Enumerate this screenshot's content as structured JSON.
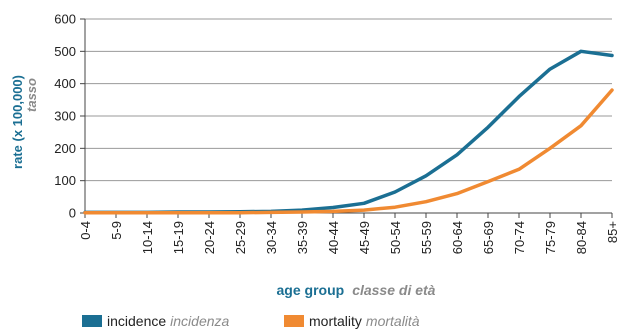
{
  "chart_data": {
    "type": "line",
    "categories": [
      "0-4",
      "5-9",
      "10-14",
      "15-19",
      "20-24",
      "25-29",
      "30-34",
      "35-39",
      "40-44",
      "45-49",
      "50-54",
      "55-59",
      "60-64",
      "65-69",
      "70-74",
      "75-79",
      "80-84",
      "85+"
    ],
    "series": [
      {
        "name": "incidence",
        "name_secondary": "incidenza",
        "color": "#1b6f93",
        "values": [
          2,
          2,
          2,
          3,
          3,
          4,
          5,
          9,
          17,
          30,
          65,
          115,
          180,
          265,
          360,
          445,
          500,
          487
        ]
      },
      {
        "name": "mortality",
        "name_secondary": "mortalità",
        "color": "#f08a32",
        "values": [
          1,
          1,
          1,
          1,
          1,
          1,
          2,
          3,
          5,
          9,
          18,
          35,
          60,
          97,
          135,
          200,
          270,
          380
        ]
      }
    ],
    "ylim": [
      0,
      600
    ],
    "yticks": [
      0,
      100,
      200,
      300,
      400,
      500,
      600
    ],
    "grid": true,
    "xlabel": "age group",
    "xlabel_secondary": "classe di età",
    "ylabel": "rate (x 100,000)",
    "ylabel_secondary": "tasso",
    "legend_position": "bottom"
  }
}
